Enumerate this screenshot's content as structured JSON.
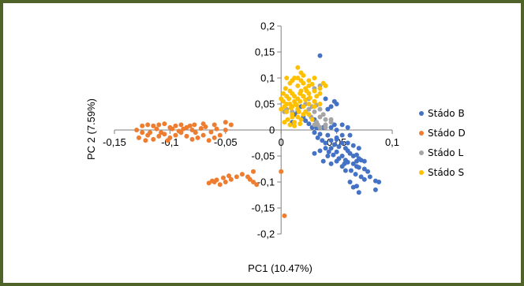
{
  "chart_data": {
    "type": "scatter",
    "xlabel": "PC1 (10.47%)",
    "ylabel": "PC 2 (7.59%)",
    "xlim": [
      -0.15,
      0.1
    ],
    "ylim": [
      -0.2,
      0.2
    ],
    "x_ticks": [
      -0.15,
      -0.1,
      -0.05,
      0,
      0.05,
      0.1
    ],
    "x_tick_labels": [
      "-0,15",
      "-0,1",
      "-0,05",
      "0",
      "0,05",
      "0,1"
    ],
    "y_ticks": [
      0.2,
      0.15,
      0.1,
      0.05,
      0,
      -0.05,
      -0.1,
      -0.15,
      -0.2
    ],
    "y_tick_labels": [
      "0,2",
      "0,15",
      "0,1",
      "0,05",
      "0",
      "-0,05",
      "-0,1",
      "-0,15",
      "-0,2"
    ],
    "grid": false,
    "legend_position": "right",
    "series": [
      {
        "name": "Stádo B",
        "color": "#4472c4",
        "points": [
          [
            0.035,
            0.143
          ],
          [
            0.02,
            0.025
          ],
          [
            0.022,
            0.018
          ],
          [
            0.025,
            0.012
          ],
          [
            0.03,
            0.02
          ],
          [
            0.028,
            0.005
          ],
          [
            0.03,
            -0.005
          ],
          [
            0.032,
            0.004
          ],
          [
            0.035,
            -0.008
          ],
          [
            0.033,
            -0.015
          ],
          [
            0.037,
            -0.02
          ],
          [
            0.04,
            -0.025
          ],
          [
            0.045,
            -0.02
          ],
          [
            0.05,
            -0.018
          ],
          [
            0.048,
            -0.028
          ],
          [
            0.052,
            -0.032
          ],
          [
            0.055,
            -0.025
          ],
          [
            0.058,
            -0.035
          ],
          [
            0.06,
            -0.04
          ],
          [
            0.062,
            -0.045
          ],
          [
            0.065,
            -0.05
          ],
          [
            0.068,
            -0.048
          ],
          [
            0.07,
            -0.055
          ],
          [
            0.072,
            -0.058
          ],
          [
            0.075,
            -0.06
          ],
          [
            0.045,
            -0.035
          ],
          [
            0.05,
            -0.042
          ],
          [
            0.055,
            -0.05
          ],
          [
            0.058,
            -0.058
          ],
          [
            0.06,
            -0.062
          ],
          [
            0.065,
            -0.065
          ],
          [
            0.068,
            -0.07
          ],
          [
            0.07,
            -0.072
          ],
          [
            0.063,
            -0.078
          ],
          [
            0.067,
            -0.085
          ],
          [
            0.072,
            -0.09
          ],
          [
            0.075,
            -0.095
          ],
          [
            0.08,
            -0.09
          ],
          [
            0.085,
            -0.098
          ],
          [
            0.088,
            -0.1
          ],
          [
            0.062,
            -0.1
          ],
          [
            0.065,
            -0.11
          ],
          [
            0.068,
            -0.108
          ],
          [
            0.07,
            -0.12
          ],
          [
            0.085,
            -0.115
          ],
          [
            0.04,
            -0.035
          ],
          [
            0.042,
            -0.05
          ],
          [
            0.05,
            -0.06
          ],
          [
            0.055,
            -0.07
          ],
          [
            0.058,
            -0.078
          ],
          [
            0.035,
            -0.04
          ],
          [
            0.038,
            -0.06
          ],
          [
            0.03,
            -0.045
          ],
          [
            0.045,
            -0.065
          ],
          [
            0.055,
            -0.01
          ],
          [
            0.06,
            0.005
          ],
          [
            0.045,
            0.005
          ],
          [
            0.05,
            0.0
          ],
          [
            0.048,
            0.01
          ],
          [
            0.042,
            -0.01
          ],
          [
            0.038,
            0.005
          ],
          [
            0.055,
            0.01
          ],
          [
            0.062,
            -0.01
          ],
          [
            0.065,
            -0.03
          ],
          [
            0.07,
            -0.035
          ],
          [
            0.04,
            0.06
          ],
          [
            0.05,
            0.05
          ],
          [
            0.048,
            0.055
          ],
          [
            0.045,
            0.045
          ],
          [
            0.042,
            0.04
          ],
          [
            0.015,
            0.035
          ],
          [
            0.01,
            0.015
          ],
          [
            0.012,
            0.03
          ],
          [
            0.018,
            0.045
          ],
          [
            0.05,
            -0.015
          ],
          [
            0.06,
            -0.025
          ],
          [
            0.075,
            -0.075
          ],
          [
            0.078,
            -0.08
          ],
          [
            0.057,
            -0.065
          ],
          [
            0.052,
            -0.055
          ],
          [
            0.047,
            -0.048
          ],
          [
            0.043,
            -0.042
          ],
          [
            0.068,
            -0.06
          ]
        ]
      },
      {
        "name": "Stádo D",
        "color": "#ed7d31",
        "points": [
          [
            -0.13,
            0.0
          ],
          [
            -0.125,
            -0.005
          ],
          [
            -0.12,
            -0.01
          ],
          [
            -0.128,
            -0.015
          ],
          [
            -0.122,
            -0.02
          ],
          [
            -0.115,
            -0.018
          ],
          [
            -0.11,
            -0.012
          ],
          [
            -0.118,
            -0.005
          ],
          [
            -0.112,
            0.002
          ],
          [
            -0.105,
            -0.008
          ],
          [
            -0.1,
            -0.015
          ],
          [
            -0.095,
            -0.01
          ],
          [
            -0.09,
            -0.005
          ],
          [
            -0.085,
            -0.012
          ],
          [
            -0.08,
            -0.018
          ],
          [
            -0.075,
            -0.015
          ],
          [
            -0.07,
            -0.01
          ],
          [
            -0.065,
            -0.02
          ],
          [
            -0.06,
            -0.015
          ],
          [
            -0.1,
            0.005
          ],
          [
            -0.095,
            0.008
          ],
          [
            -0.09,
            0.01
          ],
          [
            -0.085,
            0.005
          ],
          [
            -0.08,
            0.0
          ],
          [
            -0.11,
            0.01
          ],
          [
            -0.105,
            0.012
          ],
          [
            -0.098,
            0.002
          ],
          [
            -0.092,
            -0.002
          ],
          [
            -0.088,
            0.002
          ],
          [
            -0.082,
            0.008
          ],
          [
            -0.077,
            -0.005
          ],
          [
            -0.072,
            0.003
          ],
          [
            -0.068,
            0.006
          ],
          [
            -0.063,
            -0.004
          ],
          [
            -0.058,
            0.002
          ],
          [
            -0.055,
            -0.01
          ],
          [
            -0.05,
            0.0
          ],
          [
            -0.045,
            0.01
          ],
          [
            -0.05,
            0.015
          ],
          [
            -0.06,
            0.01
          ],
          [
            -0.07,
            0.012
          ],
          [
            -0.078,
            0.01
          ],
          [
            -0.108,
            -0.005
          ],
          [
            -0.102,
            -0.02
          ],
          [
            -0.115,
            0.008
          ],
          [
            -0.12,
            0.01
          ],
          [
            -0.125,
            0.008
          ],
          [
            -0.04,
            -0.09
          ],
          [
            -0.045,
            -0.095
          ],
          [
            -0.05,
            -0.1
          ],
          [
            -0.055,
            -0.105
          ],
          [
            -0.06,
            -0.1
          ],
          [
            -0.065,
            -0.102
          ],
          [
            -0.047,
            -0.088
          ],
          [
            -0.052,
            -0.092
          ],
          [
            -0.058,
            -0.096
          ],
          [
            -0.062,
            -0.098
          ],
          [
            -0.03,
            -0.09
          ],
          [
            -0.028,
            -0.095
          ],
          [
            -0.025,
            -0.1
          ],
          [
            -0.022,
            -0.105
          ],
          [
            -0.025,
            -0.08
          ],
          [
            0.0,
            -0.08
          ],
          [
            0.003,
            -0.165
          ],
          [
            -0.035,
            -0.085
          ]
        ]
      },
      {
        "name": "Stádo L",
        "color": "#a5a5a5",
        "points": [
          [
            0.03,
            0.055
          ],
          [
            0.032,
            0.048
          ],
          [
            0.035,
            0.04
          ],
          [
            0.03,
            0.035
          ],
          [
            0.028,
            0.045
          ],
          [
            0.025,
            0.04
          ],
          [
            0.035,
            0.025
          ],
          [
            0.032,
            0.015
          ],
          [
            0.03,
            0.01
          ],
          [
            0.035,
            0.005
          ],
          [
            0.04,
            0.01
          ],
          [
            0.04,
            0.02
          ],
          [
            0.045,
            0.015
          ],
          [
            0.038,
            0.03
          ],
          [
            0.022,
            0.05
          ],
          [
            0.027,
            0.025
          ],
          [
            0.033,
            0.01
          ],
          [
            0.02,
            0.065
          ],
          [
            0.018,
            0.075
          ],
          [
            0.03,
            0.08
          ],
          [
            0.035,
            0.085
          ],
          [
            0.025,
            0.06
          ],
          [
            0.04,
            0.005
          ],
          [
            0.015,
            0.04
          ],
          [
            0.01,
            0.035
          ],
          [
            0.005,
            0.04
          ],
          [
            0.003,
            0.035
          ],
          [
            0.045,
            0.02
          ]
        ]
      },
      {
        "name": "Stádo S",
        "color": "#ffc000",
        "points": [
          [
            0.015,
            0.12
          ],
          [
            0.018,
            0.11
          ],
          [
            0.012,
            0.1
          ],
          [
            0.01,
            0.095
          ],
          [
            0.005,
            0.1
          ],
          [
            0.008,
            0.09
          ],
          [
            0.015,
            0.085
          ],
          [
            0.02,
            0.09
          ],
          [
            0.025,
            0.095
          ],
          [
            0.03,
            0.1
          ],
          [
            0.028,
            0.088
          ],
          [
            0.022,
            0.08
          ],
          [
            0.018,
            0.075
          ],
          [
            0.01,
            0.07
          ],
          [
            0.005,
            0.065
          ],
          [
            0.0,
            0.06
          ],
          [
            0.002,
            0.055
          ],
          [
            0.008,
            0.05
          ],
          [
            0.012,
            0.055
          ],
          [
            0.015,
            0.06
          ],
          [
            0.02,
            0.065
          ],
          [
            0.025,
            0.07
          ],
          [
            0.03,
            0.075
          ],
          [
            0.035,
            0.08
          ],
          [
            0.038,
            0.09
          ],
          [
            0.04,
            0.085
          ],
          [
            0.035,
            0.07
          ],
          [
            0.032,
            0.065
          ],
          [
            0.03,
            0.055
          ],
          [
            0.025,
            0.05
          ],
          [
            0.02,
            0.045
          ],
          [
            0.015,
            0.04
          ],
          [
            0.01,
            0.045
          ],
          [
            0.005,
            0.05
          ],
          [
            0.003,
            0.045
          ],
          [
            0.0,
            0.04
          ],
          [
            0.005,
            0.035
          ],
          [
            0.01,
            0.03
          ],
          [
            0.015,
            0.025
          ],
          [
            0.02,
            0.03
          ],
          [
            0.022,
            0.035
          ],
          [
            0.018,
            0.02
          ],
          [
            0.012,
            0.015
          ],
          [
            0.008,
            0.01
          ],
          [
            0.003,
            0.015
          ],
          [
            0.006,
            0.02
          ],
          [
            0.01,
            0.025
          ],
          [
            0.013,
            0.05
          ],
          [
            0.017,
            0.055
          ],
          [
            0.007,
            0.06
          ],
          [
            0.012,
            0.065
          ],
          [
            0.017,
            0.07
          ],
          [
            0.023,
            0.075
          ],
          [
            0.015,
            0.1
          ],
          [
            0.02,
            0.105
          ],
          [
            0.025,
            0.085
          ],
          [
            0.008,
            0.075
          ],
          [
            0.002,
            0.07
          ],
          [
            0.004,
            0.08
          ],
          [
            0.018,
            0.095
          ],
          [
            0.022,
            0.058
          ],
          [
            0.026,
            0.062
          ],
          [
            0.03,
            0.045
          ],
          [
            0.035,
            0.05
          ],
          [
            0.016,
            0.035
          ],
          [
            0.012,
            0.008
          ],
          [
            0.017,
            0.012
          ],
          [
            0.028,
            0.02
          ],
          [
            0.025,
            0.03
          ],
          [
            0.009,
            0.042
          ],
          [
            0.014,
            0.048
          ]
        ]
      }
    ]
  }
}
